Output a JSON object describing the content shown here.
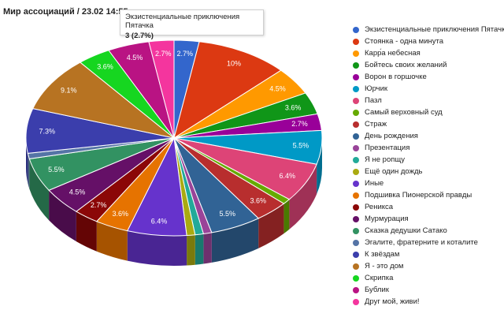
{
  "title": "Мир ассоциаций / 23.02 14:55",
  "tooltip": {
    "label": "Экзистенциальные приключения Пятачка",
    "value": "3 (2.7%)"
  },
  "chart_data": {
    "type": "pie",
    "title": "Мир ассоциаций / 23.02 14:55",
    "legend_position": "right",
    "three_d": true,
    "start": "top, clockwise",
    "slices": [
      {
        "label": "Экзистенциальные приключения Пятачка",
        "value": 2.7,
        "display": "2.7%",
        "color": "#3366cc"
      },
      {
        "label": "Стоянка - одна минута",
        "value": 10,
        "display": "10%",
        "color": "#dc3912"
      },
      {
        "label": "Карр́а небесная",
        "value": 4.5,
        "display": "4.5%",
        "color": "#ff9900"
      },
      {
        "label": "Бойтесь своих желаний",
        "value": 3.6,
        "display": "3.6%",
        "color": "#109618"
      },
      {
        "label": "Ворон в горшочке",
        "value": 2.7,
        "display": "2.7%",
        "color": "#990099"
      },
      {
        "label": "Юрчик",
        "value": 5.5,
        "display": "5.5%",
        "color": "#0099c6"
      },
      {
        "label": "Пазл",
        "value": 6.4,
        "display": "6.4%",
        "color": "#dd4477"
      },
      {
        "label": "Самый верховный суд",
        "value": 0.9,
        "display": "",
        "color": "#66aa00"
      },
      {
        "label": "Страж",
        "value": 3.6,
        "display": "3.6%",
        "color": "#b82e2e"
      },
      {
        "label": "День рождения",
        "value": 5.5,
        "display": "5.5%",
        "color": "#316395"
      },
      {
        "label": "Презентация",
        "value": 0.9,
        "display": "",
        "color": "#994499"
      },
      {
        "label": "Я не ропщу",
        "value": 0.9,
        "display": "",
        "color": "#22aa99"
      },
      {
        "label": "Ещё один дождь",
        "value": 0.9,
        "display": "",
        "color": "#aaaa11"
      },
      {
        "label": "Иные",
        "value": 6.4,
        "display": "6.4%",
        "color": "#6633cc"
      },
      {
        "label": "Подшивка Пионерской правды",
        "value": 3.6,
        "display": "3.6%",
        "color": "#e67300"
      },
      {
        "label": "Реникса",
        "value": 2.7,
        "display": "2.7%",
        "color": "#8b0707"
      },
      {
        "label": "Мурмурация",
        "value": 4.5,
        "display": "4.5%",
        "color": "#651067"
      },
      {
        "label": "Сказка дедушки Сатако",
        "value": 5.5,
        "display": "5.5%",
        "color": "#329262"
      },
      {
        "label": "Эгалите, фратерните и коталите",
        "value": 0.9,
        "display": "",
        "color": "#5574a6"
      },
      {
        "label": "К звёздам",
        "value": 7.3,
        "display": "7.3%",
        "color": "#3b3eac"
      },
      {
        "label": "Я - это дом",
        "value": 9.1,
        "display": "9.1%",
        "color": "#b77322"
      },
      {
        "label": "Скрипка",
        "value": 3.6,
        "display": "3.6%",
        "color": "#16d620"
      },
      {
        "label": "Бублик",
        "value": 4.5,
        "display": "4.5%",
        "color": "#b91383"
      },
      {
        "label": "Друг мой, живи!",
        "value": 2.7,
        "display": "2.7%",
        "color": "#f4359e"
      }
    ]
  }
}
